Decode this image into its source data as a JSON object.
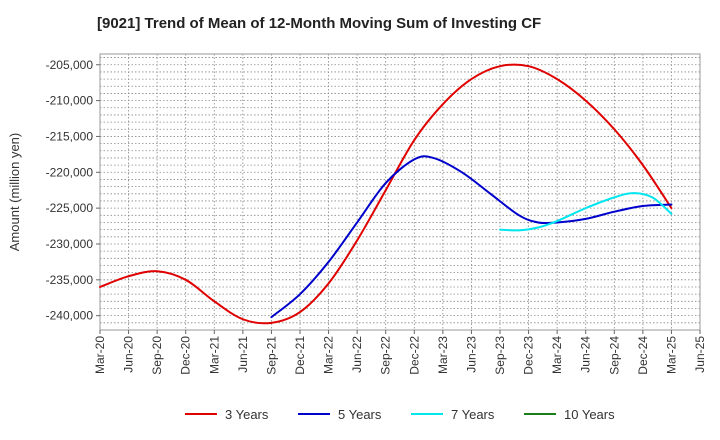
{
  "chart_data": {
    "type": "line",
    "title": "[9021]  Trend of Mean of 12-Month Moving Sum of Investing CF",
    "xlabel": "",
    "ylabel": "Amount (million yen)",
    "ylim": [
      -242000,
      -203500
    ],
    "yticks": [
      -205000,
      -210000,
      -215000,
      -220000,
      -225000,
      -230000,
      -235000,
      -240000
    ],
    "ytick_labels": [
      "-205,000",
      "-210,000",
      "-215,000",
      "-220,000",
      "-225,000",
      "-230,000",
      "-235,000",
      "-240,000"
    ],
    "x_start": "Mar-20",
    "x_end": "Jun-25",
    "x_months": 63,
    "xtick_labels": [
      "Mar-20",
      "Jun-20",
      "Sep-20",
      "Dec-20",
      "Mar-21",
      "Jun-21",
      "Sep-21",
      "Dec-21",
      "Mar-22",
      "Jun-22",
      "Sep-22",
      "Dec-22",
      "Mar-23",
      "Jun-23",
      "Sep-23",
      "Dec-23",
      "Mar-24",
      "Jun-24",
      "Sep-24",
      "Dec-24",
      "Mar-25",
      "Jun-25"
    ],
    "grid": true,
    "legend_position": "bottom",
    "series": [
      {
        "name": "3 Years",
        "color": "#e00000",
        "points": [
          [
            0,
            -236000
          ],
          [
            3,
            -234500
          ],
          [
            6,
            -233800
          ],
          [
            9,
            -235000
          ],
          [
            12,
            -238000
          ],
          [
            15,
            -240500
          ],
          [
            18,
            -241000
          ],
          [
            21,
            -239500
          ],
          [
            24,
            -235500
          ],
          [
            27,
            -229500
          ],
          [
            30,
            -222500
          ],
          [
            33,
            -215500
          ],
          [
            36,
            -210500
          ],
          [
            39,
            -207000
          ],
          [
            42,
            -205200
          ],
          [
            45,
            -205200
          ],
          [
            48,
            -207000
          ],
          [
            51,
            -210000
          ],
          [
            54,
            -214000
          ],
          [
            57,
            -219000
          ],
          [
            60,
            -225000
          ]
        ]
      },
      {
        "name": "5 Years",
        "color": "#0000cc",
        "points": [
          [
            18,
            -240200
          ],
          [
            21,
            -237000
          ],
          [
            24,
            -232500
          ],
          [
            27,
            -227000
          ],
          [
            30,
            -221500
          ],
          [
            33,
            -218200
          ],
          [
            35,
            -218000
          ],
          [
            38,
            -220000
          ],
          [
            41,
            -223000
          ],
          [
            44,
            -226000
          ],
          [
            46,
            -227000
          ],
          [
            48,
            -227000
          ],
          [
            51,
            -226500
          ],
          [
            54,
            -225500
          ],
          [
            57,
            -224700
          ],
          [
            60,
            -224500
          ]
        ]
      },
      {
        "name": "7 Years",
        "color": "#00e5ee",
        "points": [
          [
            42,
            -228000
          ],
          [
            44,
            -228100
          ],
          [
            46,
            -227700
          ],
          [
            48,
            -226800
          ],
          [
            51,
            -225000
          ],
          [
            54,
            -223500
          ],
          [
            56,
            -222900
          ],
          [
            58,
            -223500
          ],
          [
            60,
            -225800
          ]
        ]
      },
      {
        "name": "10 Years",
        "color": "#1a7f1a",
        "points": []
      }
    ]
  }
}
